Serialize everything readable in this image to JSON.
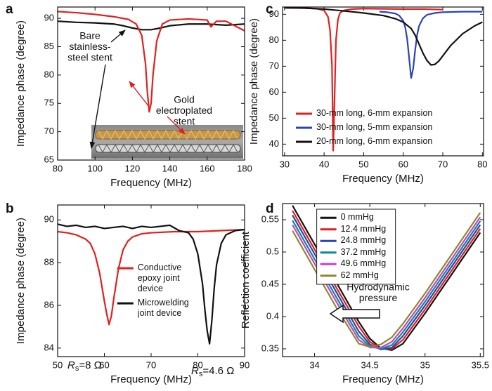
{
  "chart_data": [
    {
      "type": "line",
      "panel_label": "a",
      "xlabel": "Frequency (MHz)",
      "ylabel": "Impedance phase (degree)",
      "xlim": [
        80,
        180
      ],
      "ylim": [
        65,
        92
      ],
      "xticks": [
        80,
        100,
        120,
        140,
        160,
        180
      ],
      "yticks": [
        65,
        70,
        75,
        80,
        85,
        90
      ],
      "series": [
        {
          "color": "#111111",
          "x": [
            80,
            90,
            100,
            110,
            115,
            120,
            125,
            130,
            135,
            140,
            150,
            160,
            170,
            180
          ],
          "values": [
            89.5,
            89.3,
            89.2,
            89.0,
            88.7,
            88.3,
            88.0,
            88.0,
            88.3,
            88.7,
            89.0,
            89.0,
            88.8,
            89.0
          ]
        },
        {
          "color": "#e02020",
          "x": [
            80,
            90,
            100,
            110,
            118,
            122,
            125,
            127,
            128,
            129,
            130,
            131,
            133,
            136,
            140,
            150,
            160,
            162,
            165,
            170,
            180
          ],
          "values": [
            91.2,
            91.0,
            90.7,
            90.3,
            89.8,
            89.0,
            87.0,
            82.0,
            77.0,
            73.5,
            75.0,
            80.0,
            86.0,
            89.0,
            89.7,
            89.9,
            89.7,
            88.5,
            89.5,
            89.5,
            87.8
          ]
        }
      ],
      "annotations": [
        {
          "lines": [
            "Bare",
            "stainless-",
            "steel stent"
          ],
          "color": "#111111"
        },
        {
          "lines": [
            "Gold",
            "electroplated",
            "stent"
          ],
          "color": "#e02020"
        }
      ]
    },
    {
      "type": "line",
      "panel_label": "b",
      "xlabel": "Frequency (MHz)",
      "ylabel": "Impedance phase (degree)",
      "xlim": [
        50,
        90
      ],
      "ylim": [
        83.6,
        90.7
      ],
      "xticks": [
        50,
        60,
        70,
        80,
        90
      ],
      "yticks": [
        84,
        86,
        88,
        90
      ],
      "legend": "center",
      "series": [
        {
          "name": "Conductive epoxy joint device",
          "color": "#e02020",
          "x": [
            50,
            52,
            54,
            56,
            57,
            58,
            59,
            60,
            60.5,
            61,
            61.5,
            62,
            63,
            64,
            65,
            66,
            68,
            70,
            75,
            80,
            85,
            90
          ],
          "values": [
            89.45,
            89.4,
            89.3,
            89.1,
            88.9,
            88.4,
            87.5,
            86.2,
            85.6,
            85.1,
            85.5,
            86.3,
            87.7,
            88.6,
            89.0,
            89.2,
            89.35,
            89.4,
            89.45,
            89.45,
            89.5,
            89.55
          ]
        },
        {
          "name": "Microwelding joint device",
          "color": "#111111",
          "x": [
            50,
            52,
            54,
            56,
            58,
            60,
            62,
            64,
            66,
            68,
            70,
            72,
            74,
            76,
            78,
            79,
            80,
            81,
            81.5,
            82,
            82.5,
            83,
            83.5,
            84,
            85,
            86,
            88,
            90
          ],
          "values": [
            89.8,
            89.7,
            89.75,
            89.65,
            89.7,
            89.6,
            89.65,
            89.7,
            89.6,
            89.7,
            89.65,
            89.7,
            89.75,
            89.5,
            89.4,
            89.1,
            88.4,
            87.0,
            85.8,
            84.8,
            84.2,
            85.3,
            86.8,
            87.9,
            88.9,
            89.3,
            89.5,
            89.55
          ]
        }
      ],
      "annotations": [
        {
          "symbol": "R",
          "subscript": "s",
          "text": "=8 Ω",
          "color": "#e02020"
        },
        {
          "symbol": "R",
          "subscript": "s",
          "text": "=4.6 Ω",
          "color": "#111111"
        }
      ]
    },
    {
      "type": "line",
      "panel_label": "c",
      "xlabel": "Frequency (MHz)",
      "ylabel": "Impedance phase (degree)",
      "xlim": [
        29.5,
        80.3
      ],
      "ylim": [
        35.5,
        92.8
      ],
      "xticks": [
        30,
        40,
        50,
        60,
        70,
        80
      ],
      "yticks": [
        40,
        50,
        60,
        70,
        80,
        90
      ],
      "legend": "lower-left",
      "series": [
        {
          "name": "30-mm long, 6-mm expansion",
          "color": "#e02020",
          "x": [
            30,
            35,
            38,
            40,
            41,
            41.5,
            42,
            42.3,
            42.6,
            43,
            43.5,
            44,
            45,
            47,
            50,
            55,
            60,
            65,
            70
          ],
          "values": [
            92.5,
            92.4,
            92.2,
            91.5,
            89,
            84,
            70,
            37.5,
            55,
            80,
            88,
            90.5,
            91.5,
            92,
            92.2,
            92.1,
            92,
            92,
            91.8
          ]
        },
        {
          "name": "30-mm long, 5-mm expansion",
          "color": "#2845b5",
          "x": [
            54,
            56,
            58,
            59,
            60,
            60.5,
            61,
            61.5,
            62,
            62.5,
            63,
            63.5,
            64,
            65,
            66,
            68,
            70,
            75,
            80
          ],
          "values": [
            91,
            90.8,
            90.3,
            89.5,
            87.5,
            85,
            80.5,
            73,
            65.5,
            69,
            76,
            82,
            85.5,
            88.5,
            89.8,
            90.5,
            90.8,
            91,
            91
          ]
        },
        {
          "name": "20-mm long, 6-mm expansion",
          "color": "#111111",
          "x": [
            30,
            35,
            40,
            45,
            50,
            55,
            58,
            60,
            62,
            63,
            64,
            65,
            66,
            67,
            68,
            69,
            70,
            72,
            75,
            78,
            80
          ],
          "values": [
            92.5,
            92.4,
            92,
            91.3,
            90.5,
            89.5,
            88.3,
            87,
            84.5,
            82,
            78.5,
            75,
            72.2,
            70.5,
            70.7,
            72,
            74,
            78,
            82.5,
            85.5,
            87
          ]
        }
      ]
    },
    {
      "type": "line",
      "panel_label": "d",
      "xlabel": "Frequency (MHz)",
      "ylabel": "Reflection coefficient",
      "xlim": [
        33.71,
        35.53
      ],
      "ylim": [
        0.338,
        0.575
      ],
      "xticks": [
        34,
        34.5,
        35,
        35.5
      ],
      "yticks": [
        0.35,
        0.4,
        0.45,
        0.5,
        0.55
      ],
      "legend": "upper-center",
      "series": [
        {
          "name": "0 mmHg",
          "color": "#111111",
          "x": [
            33.8,
            34.0,
            34.2,
            34.4,
            34.5,
            34.6,
            34.7,
            34.8,
            35.0,
            35.2,
            35.4,
            35.5
          ],
          "values": [
            0.572,
            0.512,
            0.452,
            0.392,
            0.366,
            0.351,
            0.348,
            0.358,
            0.405,
            0.455,
            0.505,
            0.53
          ]
        },
        {
          "name": "12.4 mmHg",
          "color": "#e02020",
          "x": [
            33.8,
            34.0,
            34.2,
            34.4,
            34.5,
            34.6,
            34.7,
            34.8,
            35.0,
            35.2,
            35.4,
            35.5
          ],
          "values": [
            0.564,
            0.504,
            0.444,
            0.385,
            0.361,
            0.35,
            0.35,
            0.364,
            0.411,
            0.461,
            0.511,
            0.536
          ]
        },
        {
          "name": "24.8 mmHg",
          "color": "#2845b5",
          "x": [
            33.8,
            34.0,
            34.2,
            34.4,
            34.5,
            34.6,
            34.7,
            34.8,
            35.0,
            35.2,
            35.4,
            35.5
          ],
          "values": [
            0.557,
            0.497,
            0.437,
            0.377,
            0.357,
            0.349,
            0.352,
            0.37,
            0.417,
            0.467,
            0.517,
            0.542
          ]
        },
        {
          "name": "37.2 mmHg",
          "color": "#0f8a8a",
          "x": [
            33.8,
            34.0,
            34.2,
            34.4,
            34.5,
            34.6,
            34.7,
            34.8,
            35.0,
            35.2,
            35.4,
            35.5
          ],
          "values": [
            0.549,
            0.489,
            0.429,
            0.37,
            0.354,
            0.35,
            0.356,
            0.376,
            0.423,
            0.473,
            0.523,
            0.548
          ]
        },
        {
          "name": "49.6 mmHg",
          "color": "#d040c8",
          "x": [
            33.8,
            34.0,
            34.2,
            34.4,
            34.5,
            34.6,
            34.7,
            34.8,
            35.0,
            35.2,
            35.4,
            35.5
          ],
          "values": [
            0.542,
            0.482,
            0.422,
            0.364,
            0.352,
            0.352,
            0.361,
            0.382,
            0.429,
            0.479,
            0.529,
            0.554
          ]
        },
        {
          "name": "62 mmHg",
          "color": "#8a8a30",
          "x": [
            33.8,
            34.0,
            34.2,
            34.4,
            34.5,
            34.6,
            34.7,
            34.8,
            35.0,
            35.2,
            35.4,
            35.5
          ],
          "values": [
            0.533,
            0.473,
            0.413,
            0.358,
            0.353,
            0.357,
            0.368,
            0.389,
            0.436,
            0.486,
            0.536,
            0.561
          ]
        }
      ],
      "annotations": [
        {
          "lines": [
            "Hydrodynamic",
            "pressure"
          ],
          "color": "#111111"
        }
      ]
    }
  ]
}
